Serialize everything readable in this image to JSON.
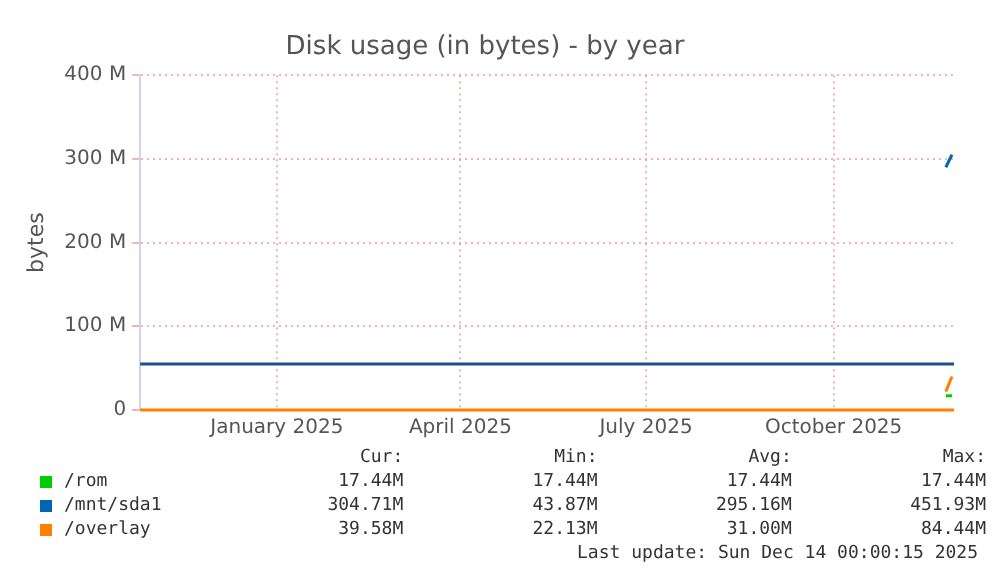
{
  "chart_data": {
    "type": "line",
    "title": "Disk usage (in bytes) - by year",
    "ylabel": "bytes",
    "xlim": [
      "2024-11-10",
      "2025-12-14"
    ],
    "xticks": [
      {
        "value": "2025-01-16",
        "label": "January 2025"
      },
      {
        "value": "2025-04-16",
        "label": "April 2025"
      },
      {
        "value": "2025-07-16",
        "label": "July 2025"
      },
      {
        "value": "2025-10-16",
        "label": "October 2025"
      }
    ],
    "ylim": [
      0,
      400
    ],
    "yticks": [
      0,
      {
        "value": 100,
        "label": "100 M"
      },
      {
        "value": 200,
        "label": "200 M"
      },
      {
        "value": 300,
        "label": "300 M"
      },
      {
        "value": 400,
        "label": "400 M"
      }
    ],
    "grid": true,
    "legend": "bottom left",
    "series": [
      {
        "name": "/rom",
        "color": "#00cc00",
        "x": [
          "2025-12-10",
          "2025-12-13"
        ],
        "values": [
          17,
          17
        ]
      },
      {
        "name": "/mnt/sda1",
        "color": "#0066b3",
        "x": [
          "2025-12-10",
          "2025-12-13"
        ],
        "values": [
          290,
          305
        ]
      },
      {
        "name": "/overlay",
        "color": "#ff8000",
        "x": [
          "2025-12-10",
          "2025-12-13"
        ],
        "values": [
          22,
          40
        ]
      }
    ],
    "ref_lines": [
      {
        "axis": "y",
        "value": 55,
        "color": "#1f4e8c"
      }
    ],
    "annotations": [
      "Cur:",
      "Min:",
      "Avg:",
      "Max:",
      "17.44M",
      "17.44M",
      "17.44M",
      "17.44M",
      "304.71M",
      "43.87M",
      "295.16M",
      "451.93M",
      "39.58M",
      "22.13M",
      "31.00M",
      "84.44M",
      "Last update: Sun Dec 14 00:00:15 2025"
    ]
  }
}
